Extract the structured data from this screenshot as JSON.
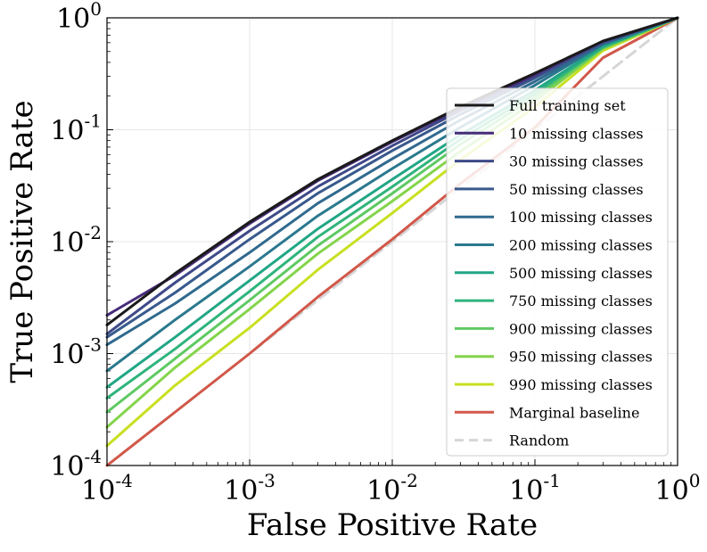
{
  "chart_data": {
    "type": "line",
    "xscale": "log",
    "yscale": "log",
    "xlabel": "False Positive Rate",
    "ylabel": "True Positive Rate",
    "xlim": [
      0.0001,
      1
    ],
    "ylim": [
      0.0001,
      1
    ],
    "grid": true,
    "legend_position": "center-right",
    "x_ticks": [
      {
        "value": 0.0001,
        "base": "10",
        "exp": "-4"
      },
      {
        "value": 0.001,
        "base": "10",
        "exp": "-3"
      },
      {
        "value": 0.01,
        "base": "10",
        "exp": "-2"
      },
      {
        "value": 0.1,
        "base": "10",
        "exp": "-1"
      },
      {
        "value": 1,
        "base": "10",
        "exp": "0"
      }
    ],
    "y_ticks": [
      {
        "value": 0.0001,
        "base": "10",
        "exp": "-4"
      },
      {
        "value": 0.001,
        "base": "10",
        "exp": "-3"
      },
      {
        "value": 0.01,
        "base": "10",
        "exp": "-2"
      },
      {
        "value": 0.1,
        "base": "10",
        "exp": "-1"
      },
      {
        "value": 1,
        "base": "10",
        "exp": "0"
      }
    ],
    "x": [
      0.0001,
      0.0003,
      0.001,
      0.003,
      0.01,
      0.03,
      0.1,
      0.3,
      1
    ],
    "series": [
      {
        "name": "Full training set",
        "color": "#1a1a1a",
        "width": 3,
        "dash": "",
        "values": [
          0.0018,
          0.0052,
          0.015,
          0.036,
          0.08,
          0.16,
          0.32,
          0.62,
          1
        ]
      },
      {
        "name": "10 missing classes",
        "color": "#472c7a",
        "width": 3,
        "dash": "",
        "values": [
          0.0022,
          0.005,
          0.0145,
          0.035,
          0.078,
          0.155,
          0.31,
          0.62,
          1
        ]
      },
      {
        "name": "30 missing classes",
        "color": "#3e4989",
        "width": 3,
        "dash": "",
        "values": [
          0.0015,
          0.0043,
          0.0125,
          0.031,
          0.072,
          0.148,
          0.3,
          0.61,
          1
        ]
      },
      {
        "name": "50 missing classes",
        "color": "#38598c",
        "width": 3,
        "dash": "",
        "values": [
          0.0014,
          0.0035,
          0.0105,
          0.027,
          0.065,
          0.137,
          0.29,
          0.6,
          1
        ]
      },
      {
        "name": "100 missing classes",
        "color": "#30698e",
        "width": 3,
        "dash": "",
        "values": [
          0.0012,
          0.0028,
          0.008,
          0.022,
          0.055,
          0.122,
          0.27,
          0.59,
          1
        ]
      },
      {
        "name": "200 missing classes",
        "color": "#2a788e",
        "width": 3,
        "dash": "",
        "values": [
          0.0007,
          0.002,
          0.006,
          0.017,
          0.045,
          0.105,
          0.25,
          0.58,
          1
        ]
      },
      {
        "name": "500 missing classes",
        "color": "#21a685",
        "width": 3,
        "dash": "",
        "values": [
          0.0005,
          0.0014,
          0.0045,
          0.013,
          0.036,
          0.09,
          0.225,
          0.56,
          1
        ]
      },
      {
        "name": "750 missing classes",
        "color": "#2fb47c",
        "width": 3,
        "dash": "",
        "values": [
          0.0004,
          0.0011,
          0.0036,
          0.011,
          0.031,
          0.082,
          0.21,
          0.55,
          1
        ]
      },
      {
        "name": "900 missing classes",
        "color": "#5ec962",
        "width": 3,
        "dash": "",
        "values": [
          0.0003,
          0.0009,
          0.003,
          0.0092,
          0.027,
          0.074,
          0.195,
          0.54,
          1
        ]
      },
      {
        "name": "950 missing classes",
        "color": "#84d44b",
        "width": 3,
        "dash": "",
        "values": [
          0.00022,
          0.00075,
          0.0025,
          0.0078,
          0.023,
          0.064,
          0.18,
          0.53,
          1
        ]
      },
      {
        "name": "990 missing classes",
        "color": "#c8e020",
        "width": 3,
        "dash": "",
        "values": [
          0.00015,
          0.00052,
          0.0017,
          0.0056,
          0.018,
          0.054,
          0.16,
          0.51,
          1
        ]
      },
      {
        "name": "Marginal baseline",
        "color": "#d1584a",
        "width": 3,
        "dash": "",
        "values": [
          0.0001,
          0.0003,
          0.001,
          0.0032,
          0.0105,
          0.033,
          0.105,
          0.44,
          1
        ]
      },
      {
        "name": "Random",
        "color": "#d6d6d6",
        "width": 3,
        "dash": "12,7",
        "values": [
          0.0001,
          0.0003,
          0.001,
          0.003,
          0.01,
          0.03,
          0.1,
          0.3,
          1
        ]
      }
    ]
  }
}
